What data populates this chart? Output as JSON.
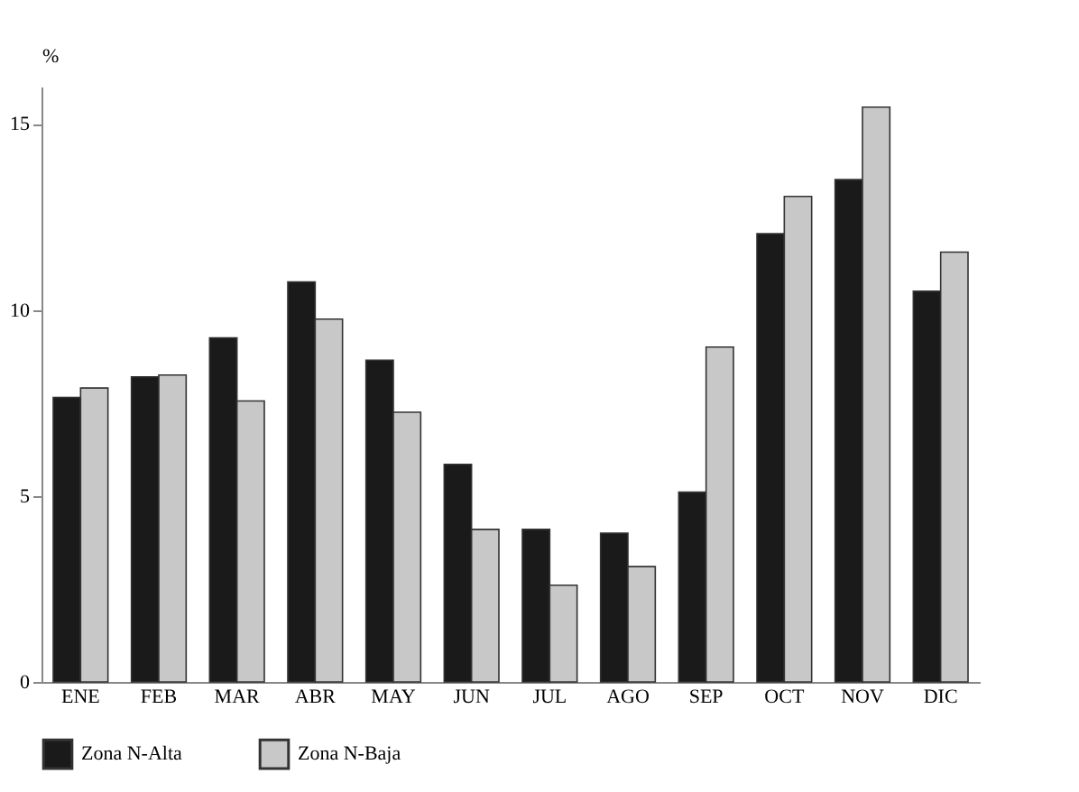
{
  "chart_data": {
    "type": "bar",
    "ylabel": "%",
    "categories": [
      "ENE",
      "FEB",
      "MAR",
      "ABR",
      "MAY",
      "JUN",
      "JUL",
      "AGO",
      "SEP",
      "OCT",
      "NOV",
      "DIC"
    ],
    "series": [
      {
        "name": "Zona N-Alta",
        "color": "#1a1a1a",
        "values": [
          7.65,
          8.2,
          9.25,
          10.75,
          8.65,
          5.85,
          4.1,
          4.0,
          5.1,
          12.05,
          13.5,
          10.5
        ]
      },
      {
        "name": "Zona N-Baja",
        "color": "#c8c8c8",
        "values": [
          7.9,
          8.25,
          7.55,
          9.75,
          7.25,
          4.1,
          2.6,
          3.1,
          9.0,
          13.05,
          15.45,
          11.55
        ]
      }
    ],
    "ylim": [
      0,
      16
    ],
    "yticks": [
      0,
      5,
      10,
      15
    ],
    "grid": false,
    "legend": "bottom"
  }
}
